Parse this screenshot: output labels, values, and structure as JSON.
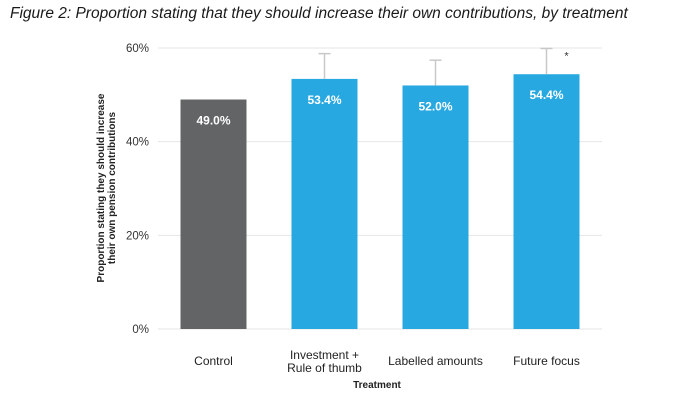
{
  "figure_title": "Figure 2: Proportion stating that they should increase their own contributions, by treatment",
  "chart_data": {
    "type": "bar",
    "title": "",
    "xlabel": "Treatment",
    "ylabel_lines": [
      "Proportion stating they should increase",
      "their own pension contributions"
    ],
    "ylim": [
      0,
      60
    ],
    "yticks": [
      0,
      20,
      40,
      60
    ],
    "ytick_labels": [
      "0%",
      "20%",
      "40%",
      "60%"
    ],
    "grid": true,
    "categories": [
      [
        "Control"
      ],
      [
        "Investment +",
        "Rule of thumb"
      ],
      [
        "Labelled amounts"
      ],
      [
        "Future focus"
      ]
    ],
    "values": [
      49.0,
      53.4,
      52.0,
      54.4
    ],
    "data_labels": [
      "49.0%",
      "53.4%",
      "52.0%",
      "54.4%"
    ],
    "error_upper": [
      null,
      58.8,
      57.4,
      59.9
    ],
    "significance": [
      "",
      "",
      "",
      "*"
    ],
    "colors": [
      "#636466",
      "#27a8e0",
      "#27a8e0",
      "#27a8e0"
    ],
    "error_bar_color": "#c8c8c8",
    "grid_color": "#e6e6e6"
  }
}
